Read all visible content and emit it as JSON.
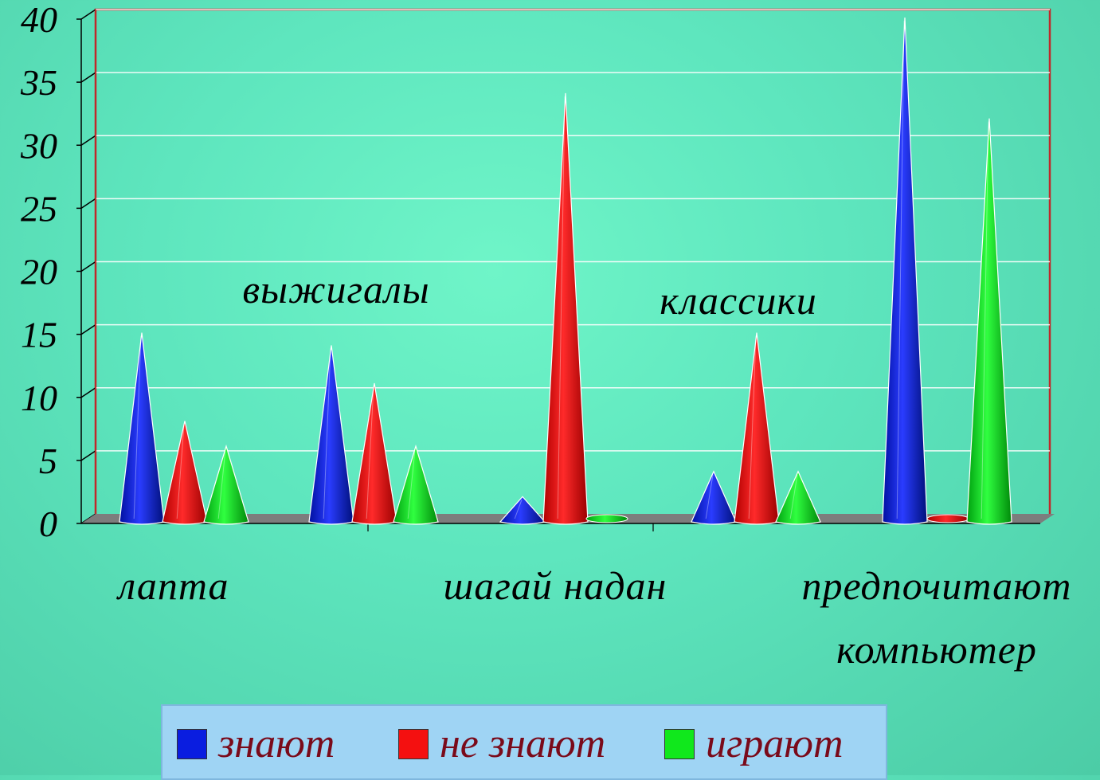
{
  "chart_data": {
    "type": "bar",
    "ylim": [
      0,
      40
    ],
    "y_ticks": [
      "0",
      "5",
      "10",
      "15",
      "20",
      "25",
      "30",
      "35",
      "40"
    ],
    "categories": [
      {
        "name": "лапта",
        "lines": [
          "лапта"
        ]
      },
      {
        "name": "выжигалы",
        "lines": [
          "выжигалы"
        ]
      },
      {
        "name": "шагай надан",
        "lines": [
          "шагай надан"
        ]
      },
      {
        "name": "классики",
        "lines": [
          "классики"
        ]
      },
      {
        "name": "предпочитают компьютер",
        "lines": [
          "предпочитают",
          "компьютер"
        ]
      }
    ],
    "series": [
      {
        "name": "знают",
        "color": "#0a1de0",
        "values": [
          15,
          14,
          2,
          4,
          40
        ]
      },
      {
        "name": "не знают",
        "color": "#f41010",
        "values": [
          8,
          11,
          34,
          15,
          0
        ]
      },
      {
        "name": "играют",
        "color": "#10e81c",
        "values": [
          6,
          6,
          0,
          4,
          32
        ]
      }
    ],
    "legend_position": "bottom",
    "grid": true,
    "wall_border_color": "#c0282a",
    "floor_color": "#7d7d7d"
  }
}
